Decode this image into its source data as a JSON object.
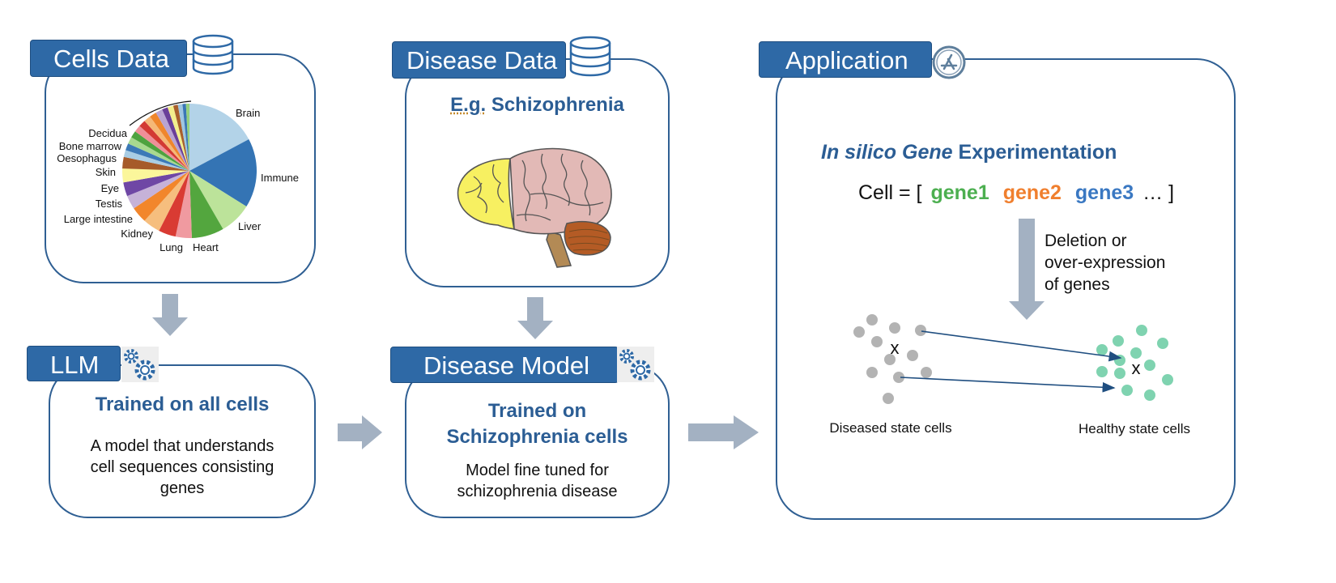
{
  "panels": {
    "cells_data": {
      "title": "Cells Data",
      "pie_labels": [
        "Brain",
        "Immune",
        "Liver",
        "Heart",
        "Lung",
        "Kidney",
        "Large intestine",
        "Testis",
        "Eye",
        "Skin",
        "Oesophagus",
        "Bone marrow",
        "Decidua"
      ]
    },
    "disease_data": {
      "title": "Disease Data",
      "example_prefix": "E.g.",
      "example_name": "Schizophrenia"
    },
    "llm": {
      "title": "LLM",
      "heading": "Trained on all cells",
      "body": [
        "A model that understands",
        "cell sequences consisting",
        "genes"
      ]
    },
    "disease_model": {
      "title": "Disease Model",
      "heading": [
        "Trained on",
        "Schizophrenia cells"
      ],
      "body": [
        "Model fine tuned for",
        "schizophrenia disease"
      ]
    },
    "application": {
      "title": "Application",
      "heading_italic": "In silico Gene",
      "heading_rest": "Experimentation",
      "cell_prefix": "Cell = [",
      "genes": [
        "gene1",
        "gene2",
        "gene3"
      ],
      "cell_suffix": "… ]",
      "arrow_text": [
        "Deletion or",
        "over-expression",
        "of genes"
      ],
      "diseased_label": "Diseased state cells",
      "healthy_label": "Healthy state cells",
      "marker": "x"
    }
  },
  "colors": {
    "accent": "#2e69a6",
    "title_blue": "#2b5d94",
    "gene1": "#4caf50",
    "gene2": "#f07f2e",
    "gene3": "#3a78c2",
    "flow_arrow": "#a3b1c2",
    "diseased_dot": "#b3b3b3",
    "healthy_dot": "#7fd3b0"
  }
}
